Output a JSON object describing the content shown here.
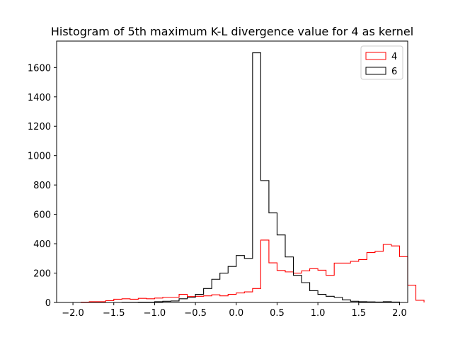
{
  "chart_data": {
    "type": "histogram",
    "title": "Histogram of 5th maximum K-L divergence value for 4 as kernel",
    "xlabel": "",
    "ylabel": "",
    "xlim": [
      -2.2,
      2.1
    ],
    "ylim": [
      0,
      1780
    ],
    "xticks": [
      "−2.0",
      "−1.5",
      "−1.0",
      "−0.5",
      "0.0",
      "0.5",
      "1.0",
      "1.5",
      "2.0"
    ],
    "xtick_values": [
      -2.0,
      -1.5,
      -1.0,
      -0.5,
      0.0,
      0.5,
      1.0,
      1.5,
      2.0
    ],
    "yticks": [
      "0",
      "200",
      "400",
      "600",
      "800",
      "1000",
      "1200",
      "1400",
      "1600"
    ],
    "ytick_values": [
      0,
      200,
      400,
      600,
      800,
      1000,
      1200,
      1400,
      1600
    ],
    "grid": false,
    "legend_position": "top-right",
    "bin_width": 0.1,
    "series": [
      {
        "name": "4",
        "color": "#ff0000",
        "bin_start": -1.9,
        "values": [
          2,
          5,
          5,
          12,
          22,
          25,
          22,
          28,
          25,
          30,
          35,
          35,
          55,
          40,
          42,
          45,
          52,
          45,
          55,
          65,
          72,
          95,
          425,
          270,
          218,
          208,
          200,
          215,
          230,
          220,
          185,
          268,
          268,
          280,
          292,
          340,
          348,
          395,
          385,
          312,
          118,
          15
        ]
      },
      {
        "name": "6",
        "color": "#000000",
        "bin_start": -1.4,
        "values": [
          1,
          1,
          2,
          2,
          5,
          8,
          10,
          25,
          35,
          55,
          95,
          158,
          200,
          245,
          320,
          300,
          1700,
          830,
          610,
          460,
          310,
          185,
          135,
          80,
          55,
          42,
          35,
          18,
          8,
          5,
          4,
          3,
          5,
          3
        ]
      }
    ]
  }
}
